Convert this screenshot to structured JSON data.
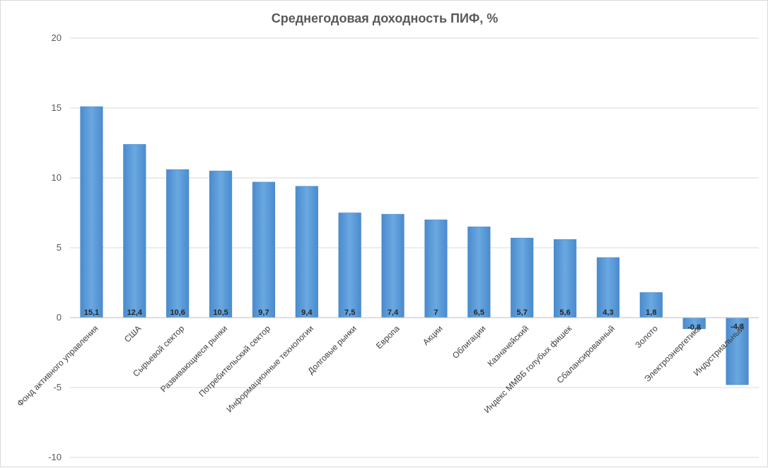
{
  "chart_data": {
    "type": "bar",
    "title": "Среднегодовая  доходность  ПИФ, %",
    "xlabel": "",
    "ylabel": "",
    "ylim": [
      -10,
      20
    ],
    "yticks": [
      -10,
      -5,
      0,
      5,
      10,
      15,
      20
    ],
    "grid": true,
    "bar_color": "#5b9bd5",
    "categories": [
      "Фонд  активного  управления",
      "США",
      "Сырьевой  сектор",
      "Развивающиеся  рынки",
      "Потребительский  сектор",
      "Информационные  технологии",
      "Долговые рынки",
      "Европа",
      "Акции",
      "Облигации",
      "Казначейский",
      "Индекс ММВБ голубых фишек",
      "Сбалансированный",
      "Золото",
      "Электроэнергетика",
      "Индустриальный"
    ],
    "values": [
      15.1,
      12.4,
      10.6,
      10.5,
      9.7,
      9.4,
      7.5,
      7.4,
      7,
      6.5,
      5.7,
      5.6,
      4.3,
      1.8,
      -0.8,
      -4.8
    ],
    "data_labels": [
      "15,1",
      "12,4",
      "10,6",
      "10,5",
      "9,7",
      "9,4",
      "7,5",
      "7,4",
      "7",
      "6,5",
      "5,7",
      "5,6",
      "4,3",
      "1,8",
      "-0,8",
      "-4,8"
    ]
  }
}
